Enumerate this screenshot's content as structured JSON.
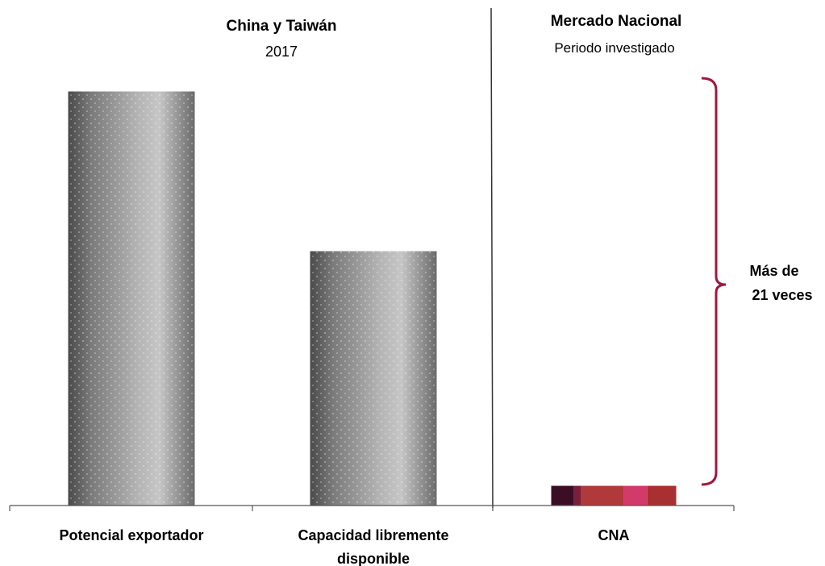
{
  "chart_data": {
    "type": "bar",
    "panels": [
      {
        "title": "China y Taiwán",
        "subtitle": "2017"
      },
      {
        "title": "Mercado Nacional",
        "subtitle": "Periodo investigado"
      }
    ],
    "categories": [
      "Potencial exportador",
      "Capacidad libremente disponible",
      "CNA"
    ],
    "category_lines": [
      [
        "Potencial exportador"
      ],
      [
        "Capacidad libremente",
        "disponible"
      ],
      [
        "CNA"
      ]
    ],
    "values": [
      21.0,
      12.9,
      1.0
    ],
    "value_unit": "relative to CNA",
    "ylim": [
      0,
      22
    ],
    "cna_stack_colors": [
      "#3a0f26",
      "#7a1f3a",
      "#b03a3a",
      "#d23a6a",
      "#a83030"
    ],
    "cna_stack_fractions": [
      0.18,
      0.06,
      0.34,
      0.19,
      0.23
    ],
    "bar_color": "#8c8c8c",
    "annotation": {
      "lines": [
        "Más de",
        "21 veces"
      ],
      "bracket_color": "#a0183c"
    },
    "grid": false,
    "legend": "none"
  }
}
